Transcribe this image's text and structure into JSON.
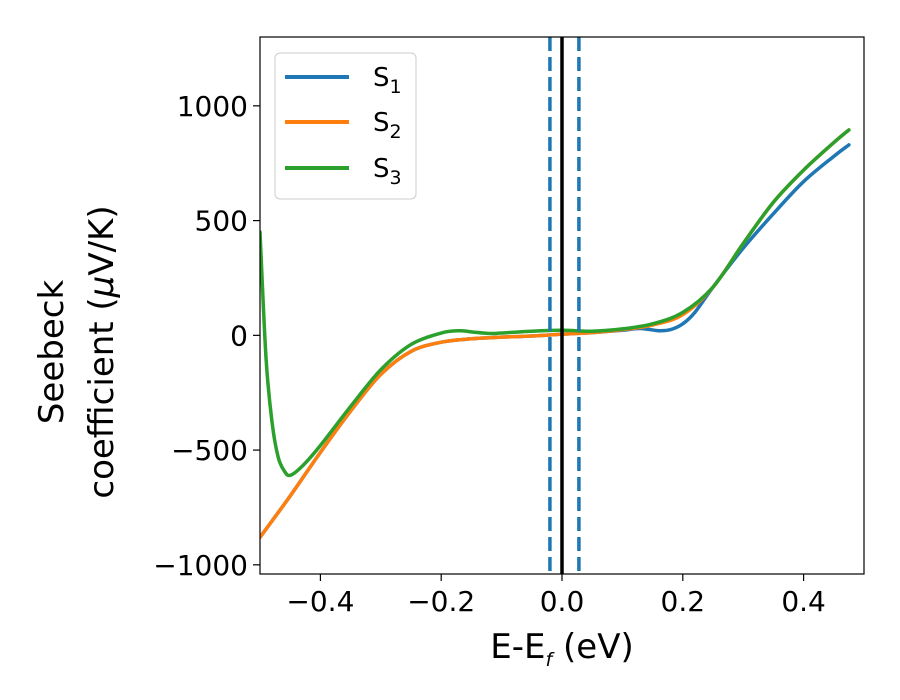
{
  "chart_data": {
    "type": "line",
    "xlabel": {
      "main": "E-E",
      "sub": "f",
      "rest": " (eV)"
    },
    "ylabel": {
      "line1": "Seebeck",
      "line2_prefix": "coefficient  (",
      "line2_mu": "μ",
      "line2_suffix": "V/K)"
    },
    "xlim": [
      -0.5,
      0.5
    ],
    "ylim": [
      -1040,
      1300
    ],
    "xticks": [
      -0.4,
      -0.2,
      0.0,
      0.2,
      0.4
    ],
    "xtick_labels": [
      "−0.4",
      "−0.2",
      "0.0",
      "0.2",
      "0.4"
    ],
    "yticks": [
      -1000,
      -500,
      0,
      500,
      1000
    ],
    "ytick_labels": [
      "−1000",
      "−500",
      "0",
      "500",
      "1000"
    ],
    "grid": false,
    "legend_position": "top-left",
    "series": [
      {
        "name": "S",
        "sub": "1",
        "color": "#1f77b4",
        "x": [
          -0.5,
          -0.45,
          -0.4,
          -0.35,
          -0.3,
          -0.25,
          -0.2,
          -0.15,
          -0.1,
          -0.05,
          0.0,
          0.05,
          0.1,
          0.13,
          0.16,
          0.18,
          0.2,
          0.22,
          0.25,
          0.3,
          0.35,
          0.4,
          0.45,
          0.475
        ],
        "y": [
          -880,
          -700,
          -510,
          -330,
          -170,
          -70,
          -30,
          -15,
          -8,
          -3,
          5,
          12,
          22,
          30,
          20,
          25,
          50,
          100,
          210,
          380,
          530,
          670,
          780,
          830
        ]
      },
      {
        "name": "S",
        "sub": "2",
        "color": "#ff7f0e",
        "x": [
          -0.5,
          -0.45,
          -0.4,
          -0.35,
          -0.3,
          -0.25,
          -0.2,
          -0.15,
          -0.1,
          -0.05,
          0.0,
          0.05,
          0.1,
          0.15,
          0.2,
          0.25,
          0.3,
          0.35,
          0.4,
          0.45,
          0.475
        ],
        "y": [
          -880,
          -700,
          -510,
          -330,
          -170,
          -70,
          -30,
          -15,
          -8,
          -3,
          5,
          12,
          25,
          45,
          90,
          210,
          400,
          580,
          720,
          840,
          895
        ]
      },
      {
        "name": "S",
        "sub": "3",
        "color": "#2ca02c",
        "x": [
          -0.5,
          -0.49,
          -0.48,
          -0.47,
          -0.46,
          -0.45,
          -0.43,
          -0.4,
          -0.35,
          -0.3,
          -0.25,
          -0.2,
          -0.17,
          -0.15,
          -0.12,
          -0.1,
          -0.05,
          0.0,
          0.05,
          0.1,
          0.15,
          0.2,
          0.25,
          0.3,
          0.35,
          0.4,
          0.45,
          0.475
        ],
        "y": [
          450,
          -100,
          -380,
          -530,
          -590,
          -610,
          -570,
          -480,
          -310,
          -150,
          -40,
          10,
          20,
          15,
          8,
          10,
          18,
          22,
          18,
          28,
          50,
          100,
          210,
          400,
          580,
          720,
          840,
          895
        ]
      }
    ],
    "vlines": [
      {
        "x": -0.02,
        "color": "#1f77b4",
        "style": "dashed"
      },
      {
        "x": 0.0,
        "color": "#000000",
        "style": "solid"
      },
      {
        "x": 0.028,
        "color": "#1f77b4",
        "style": "dashed"
      }
    ]
  }
}
